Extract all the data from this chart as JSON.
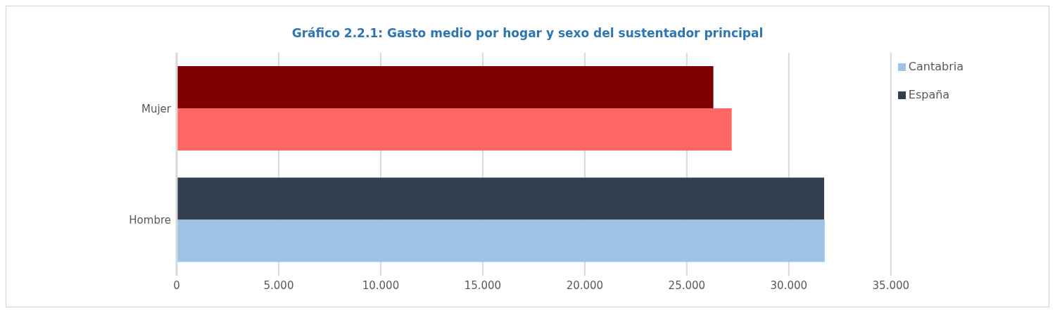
{
  "chart_data": {
    "type": "bar",
    "orientation": "horizontal",
    "title": "Gráfico 2.2.1: Gasto medio por hogar y sexo del sustentador principal",
    "categories": [
      "Mujer",
      "Hombre"
    ],
    "series": [
      {
        "name": "España",
        "color": "#333f50",
        "colors": [
          "#7f0000",
          "#333f50"
        ],
        "values": [
          26300,
          31730
        ]
      },
      {
        "name": "Cantabria",
        "color": "#9dc3e6",
        "colors": [
          "#ff6666",
          "#9dc3e6"
        ],
        "values": [
          27200,
          31760
        ]
      }
    ],
    "xlim": [
      0,
      35000
    ],
    "xticks": [
      0,
      {
        "value": 5000,
        "label": "5.000"
      },
      {
        "value": 10000,
        "label": "10.000"
      },
      {
        "value": 15000,
        "label": "15.000"
      },
      {
        "value": 20000,
        "label": "20.000"
      },
      {
        "value": 25000,
        "label": "25.000"
      },
      {
        "value": 30000,
        "label": "30.000"
      },
      {
        "value": 35000,
        "label": "35.000"
      }
    ],
    "grid": "x",
    "legend": "top right"
  }
}
